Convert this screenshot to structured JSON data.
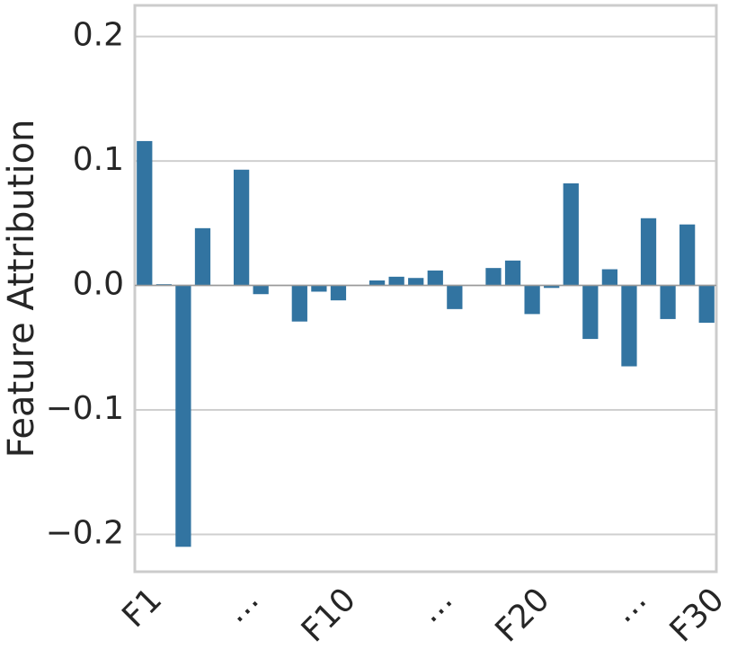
{
  "chart_data": {
    "type": "bar",
    "y_label": "Feature Attribution",
    "categories": [
      "F1",
      null,
      null,
      null,
      null,
      "…",
      null,
      null,
      null,
      null,
      "F10",
      null,
      null,
      null,
      null,
      "…",
      null,
      null,
      null,
      null,
      "F20",
      null,
      null,
      null,
      null,
      "…",
      null,
      null,
      null,
      "F30"
    ],
    "values": [
      0.116,
      0.001,
      -0.21,
      0.046,
      0,
      0.093,
      -0.007,
      0,
      -0.029,
      -0.005,
      -0.012,
      0,
      0.004,
      0.007,
      0.006,
      0.012,
      -0.019,
      0,
      0.014,
      0.02,
      -0.023,
      -0.002,
      0.082,
      -0.043,
      0.013,
      -0.065,
      0.054,
      -0.027,
      0.049,
      -0.03
    ],
    "color": "#3274a1",
    "ylim": [
      -0.23,
      0.225
    ],
    "yticks": [
      {
        "value": -0.2,
        "label": "−0.2"
      },
      {
        "value": -0.1,
        "label": "−0.1"
      },
      {
        "value": 0,
        "label": "0.0"
      },
      0.1,
      0.2
    ],
    "grid": true
  }
}
